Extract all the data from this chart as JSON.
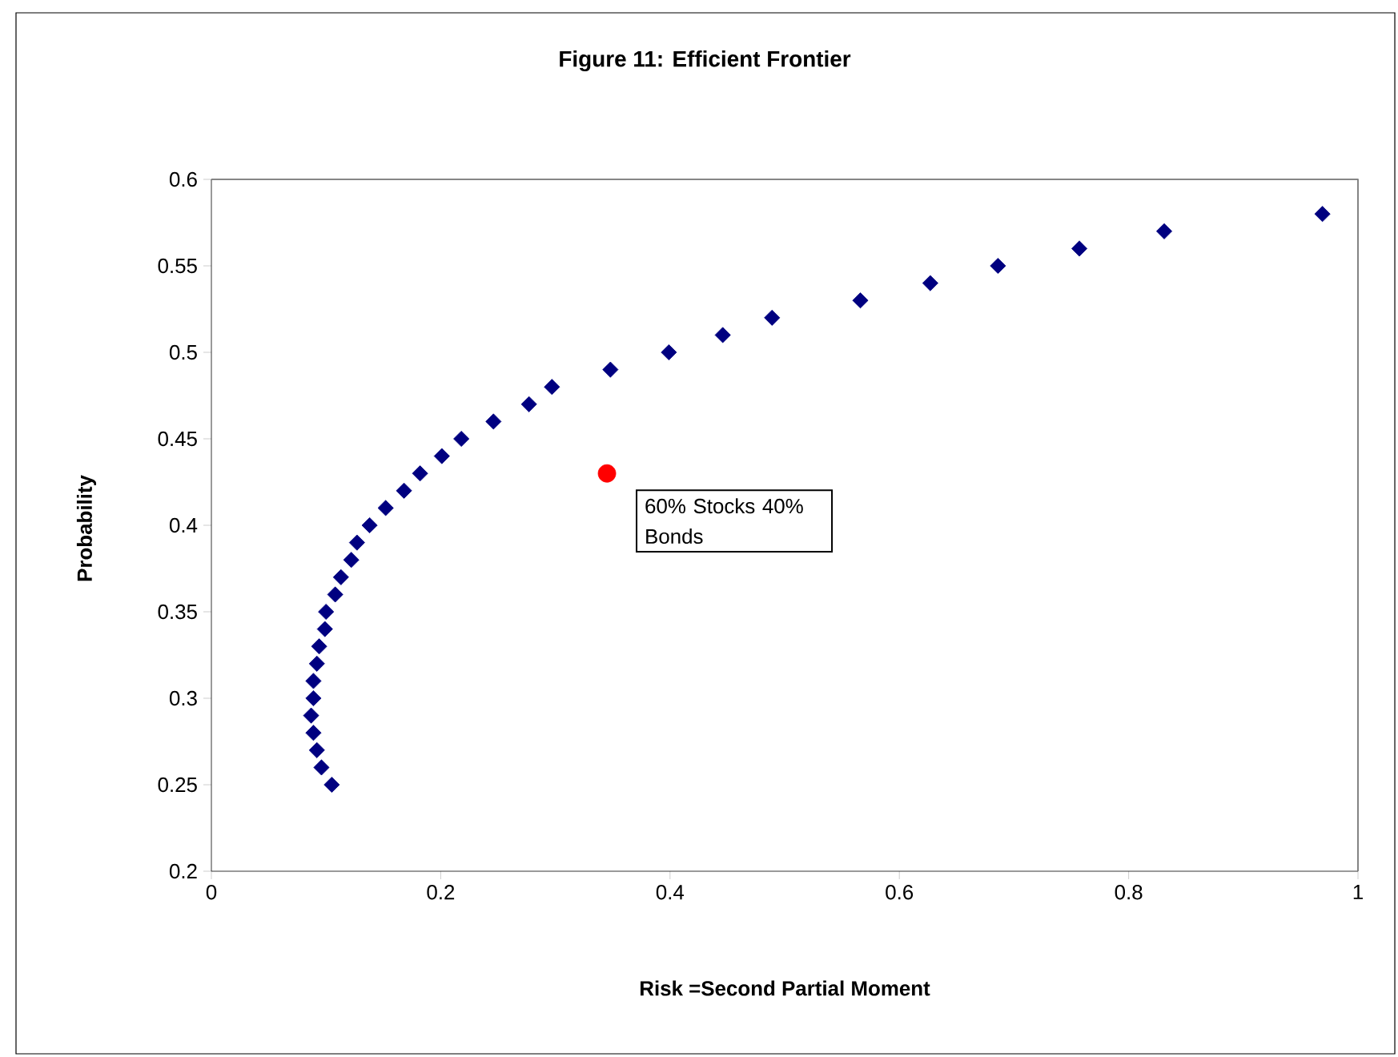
{
  "chart_data": {
    "type": "scatter",
    "title": "Figure 11: Efficient Frontier",
    "xlabel": "Risk =Second Partial Moment",
    "ylabel": "Probability",
    "xlim": [
      0,
      1
    ],
    "xticks": [
      0,
      0.2,
      0.4,
      0.6,
      0.8,
      1
    ],
    "ylim": [
      0.2,
      0.6
    ],
    "yticks": [
      0.2,
      0.25,
      0.3,
      0.35,
      0.4,
      0.45,
      0.5,
      0.55,
      0.6
    ],
    "grid": false,
    "series": [
      {
        "color": "#000080",
        "marker": "diamond",
        "x": [
          0.105,
          0.096,
          0.092,
          0.089,
          0.087,
          0.089,
          0.089,
          0.092,
          0.094,
          0.099,
          0.1,
          0.108,
          0.113,
          0.122,
          0.127,
          0.138,
          0.152,
          0.168,
          0.182,
          0.201,
          0.218,
          0.246,
          0.277,
          0.297,
          0.348,
          0.399,
          0.446,
          0.489,
          0.566,
          0.627,
          0.686,
          0.757,
          0.831,
          0.969
        ],
        "values": [
          0.25,
          0.26,
          0.27,
          0.28,
          0.29,
          0.3,
          0.31,
          0.32,
          0.33,
          0.34,
          0.35,
          0.36,
          0.37,
          0.38,
          0.39,
          0.4,
          0.41,
          0.42,
          0.43,
          0.44,
          0.45,
          0.46,
          0.47,
          0.48,
          0.49,
          0.5,
          0.51,
          0.52,
          0.53,
          0.54,
          0.55,
          0.56,
          0.57,
          0.58
        ]
      },
      {
        "color": "#ff0000",
        "marker": "circle",
        "x": [
          0.345
        ],
        "values": [
          0.43
        ]
      }
    ],
    "annotations": [
      {
        "text": "60% Stocks 40% Bonds",
        "x": 0.345,
        "y": 0.43
      }
    ]
  }
}
